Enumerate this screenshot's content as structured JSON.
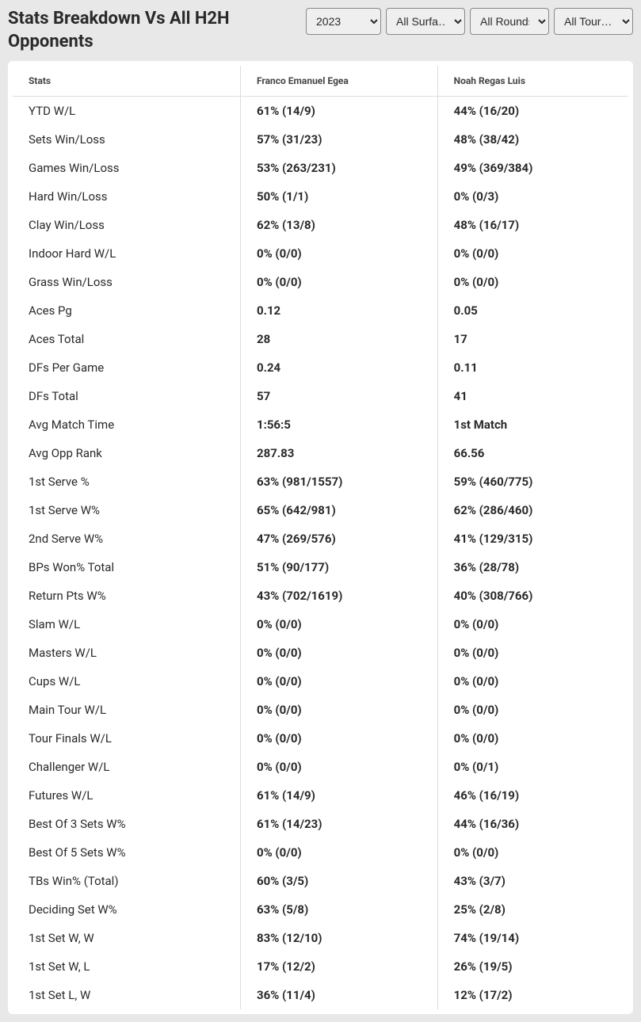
{
  "title": "Stats Breakdown Vs All H2H Opponents",
  "filters": {
    "year": "2023",
    "surface": "All Surfa…",
    "round": "All Rounds",
    "tour": "All Tour…"
  },
  "table": {
    "columns": [
      "Stats",
      "Franco Emanuel Egea",
      "Noah Regas Luis"
    ],
    "rows": [
      [
        "YTD W/L",
        "61% (14/9)",
        "44% (16/20)"
      ],
      [
        "Sets Win/Loss",
        "57% (31/23)",
        "48% (38/42)"
      ],
      [
        "Games Win/Loss",
        "53% (263/231)",
        "49% (369/384)"
      ],
      [
        "Hard Win/Loss",
        "50% (1/1)",
        "0% (0/3)"
      ],
      [
        "Clay Win/Loss",
        "62% (13/8)",
        "48% (16/17)"
      ],
      [
        "Indoor Hard W/L",
        "0% (0/0)",
        "0% (0/0)"
      ],
      [
        "Grass Win/Loss",
        "0% (0/0)",
        "0% (0/0)"
      ],
      [
        "Aces Pg",
        "0.12",
        "0.05"
      ],
      [
        "Aces Total",
        "28",
        "17"
      ],
      [
        "DFs Per Game",
        "0.24",
        "0.11"
      ],
      [
        "DFs Total",
        "57",
        "41"
      ],
      [
        "Avg Match Time",
        "1:56:5",
        "1st Match"
      ],
      [
        "Avg Opp Rank",
        "287.83",
        "66.56"
      ],
      [
        "1st Serve %",
        "63% (981/1557)",
        "59% (460/775)"
      ],
      [
        "1st Serve W%",
        "65% (642/981)",
        "62% (286/460)"
      ],
      [
        "2nd Serve W%",
        "47% (269/576)",
        "41% (129/315)"
      ],
      [
        "BPs Won% Total",
        "51% (90/177)",
        "36% (28/78)"
      ],
      [
        "Return Pts W%",
        "43% (702/1619)",
        "40% (308/766)"
      ],
      [
        "Slam W/L",
        "0% (0/0)",
        "0% (0/0)"
      ],
      [
        "Masters W/L",
        "0% (0/0)",
        "0% (0/0)"
      ],
      [
        "Cups W/L",
        "0% (0/0)",
        "0% (0/0)"
      ],
      [
        "Main Tour W/L",
        "0% (0/0)",
        "0% (0/0)"
      ],
      [
        "Tour Finals W/L",
        "0% (0/0)",
        "0% (0/0)"
      ],
      [
        "Challenger W/L",
        "0% (0/0)",
        "0% (0/1)"
      ],
      [
        "Futures W/L",
        "61% (14/9)",
        "46% (16/19)"
      ],
      [
        "Best Of 3 Sets W%",
        "61% (14/23)",
        "44% (16/36)"
      ],
      [
        "Best Of 5 Sets W%",
        "0% (0/0)",
        "0% (0/0)"
      ],
      [
        "TBs Win% (Total)",
        "60% (3/5)",
        "43% (3/7)"
      ],
      [
        "Deciding Set W%",
        "63% (5/8)",
        "25% (2/8)"
      ],
      [
        "1st Set W, W",
        "83% (12/10)",
        "74% (19/14)"
      ],
      [
        "1st Set W, L",
        "17% (12/2)",
        "26% (19/5)"
      ],
      [
        "1st Set L, W",
        "36% (11/4)",
        "12% (17/2)"
      ]
    ]
  },
  "style": {
    "background_color": "#e8e8e8",
    "table_bg": "#ffffff",
    "border_color": "#dddddd",
    "text_color": "#2a2a2a",
    "header_text_color": "#444444",
    "title_fontsize": 22,
    "header_fontsize": 12,
    "body_fontsize": 15
  }
}
